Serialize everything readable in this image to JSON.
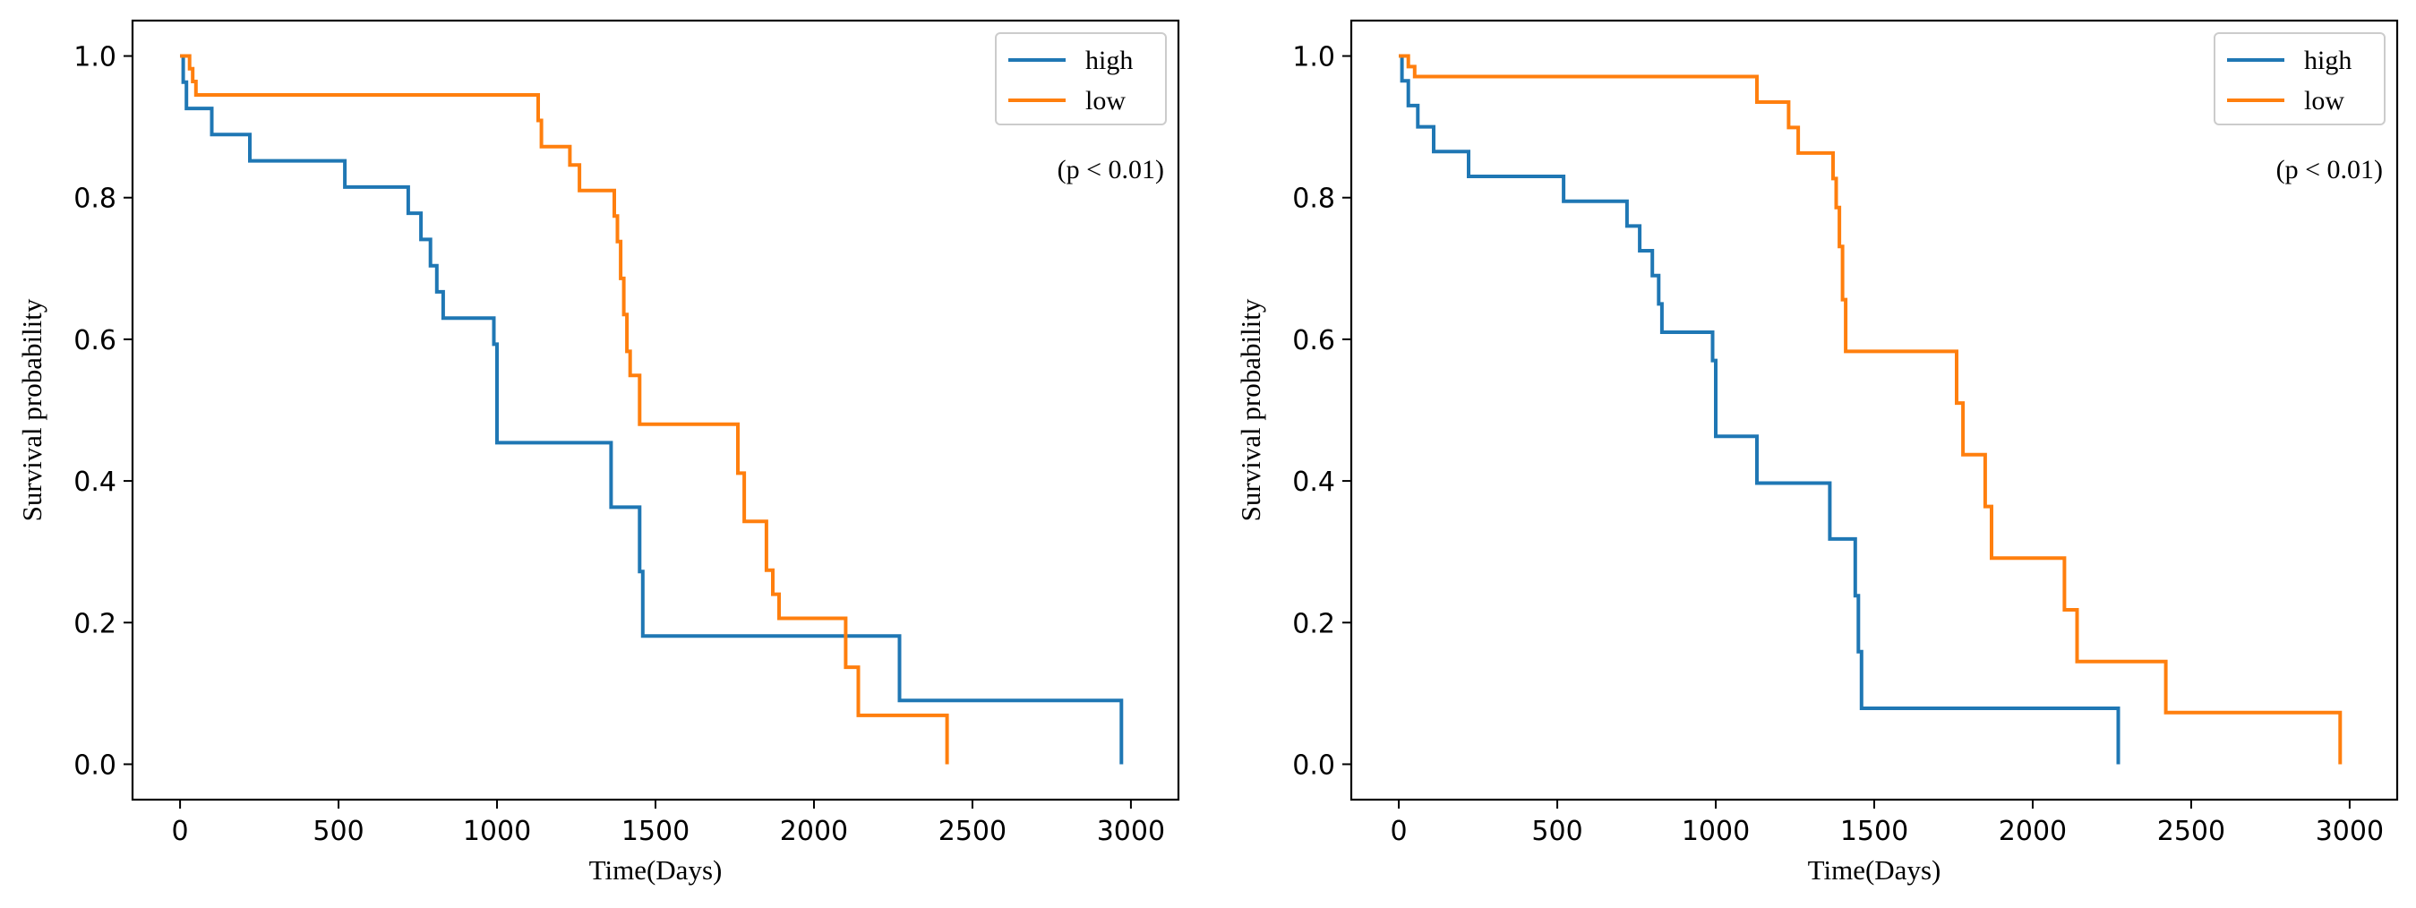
{
  "chart_data": [
    {
      "type": "line",
      "step": true,
      "title": "",
      "xlabel": "Time(Days)",
      "ylabel": "Survival probability",
      "xlim": [
        -150,
        3150
      ],
      "ylim": [
        -0.05,
        1.05
      ],
      "xticks": [
        0,
        500,
        1000,
        1500,
        2000,
        2500,
        3000
      ],
      "yticks": [
        0.0,
        0.2,
        0.4,
        0.6,
        0.8,
        1.0
      ],
      "xtick_labels": [
        "0",
        "500",
        "1000",
        "1500",
        "2000",
        "2500",
        "3000"
      ],
      "ytick_labels": [
        "0.0",
        "0.2",
        "0.4",
        "0.6",
        "0.8",
        "1.0"
      ],
      "grid": false,
      "legend_position": "top-right",
      "annotation": "(p < 0.01)",
      "series": [
        {
          "name": "high",
          "color": "#1f77b4",
          "x": [
            0,
            10,
            20,
            100,
            220,
            520,
            720,
            760,
            790,
            810,
            830,
            990,
            1000,
            1360,
            1450,
            1460,
            2270,
            2970
          ],
          "y": [
            1.0,
            0.963,
            0.926,
            0.889,
            0.852,
            0.815,
            0.778,
            0.741,
            0.704,
            0.667,
            0.63,
            0.593,
            0.454,
            0.363,
            0.272,
            0.181,
            0.09,
            0.0
          ]
        },
        {
          "name": "low",
          "color": "#ff7f0e",
          "x": [
            0,
            30,
            40,
            50,
            1130,
            1140,
            1230,
            1260,
            1370,
            1380,
            1390,
            1400,
            1410,
            1420,
            1450,
            1760,
            1780,
            1850,
            1870,
            1890,
            2100,
            2140,
            2420
          ],
          "y": [
            1.0,
            0.982,
            0.964,
            0.945,
            0.909,
            0.872,
            0.846,
            0.81,
            0.774,
            0.738,
            0.686,
            0.635,
            0.583,
            0.549,
            0.48,
            0.411,
            0.343,
            0.274,
            0.24,
            0.206,
            0.137,
            0.069,
            0.0
          ]
        }
      ]
    },
    {
      "type": "line",
      "step": true,
      "title": "",
      "xlabel": "Time(Days)",
      "ylabel": "Survival probability",
      "xlim": [
        -150,
        3150
      ],
      "ylim": [
        -0.05,
        1.05
      ],
      "xticks": [
        0,
        500,
        1000,
        1500,
        2000,
        2500,
        3000
      ],
      "yticks": [
        0.0,
        0.2,
        0.4,
        0.6,
        0.8,
        1.0
      ],
      "xtick_labels": [
        "0",
        "500",
        "1000",
        "1500",
        "2000",
        "2500",
        "3000"
      ],
      "ytick_labels": [
        "0.0",
        "0.2",
        "0.4",
        "0.6",
        "0.8",
        "1.0"
      ],
      "grid": false,
      "legend_position": "top-right",
      "annotation": "(p < 0.01)",
      "series": [
        {
          "name": "high",
          "color": "#1f77b4",
          "x": [
            0,
            10,
            30,
            60,
            110,
            220,
            520,
            720,
            760,
            800,
            820,
            830,
            990,
            1000,
            1130,
            1360,
            1440,
            1450,
            1460,
            2270
          ],
          "y": [
            1.0,
            0.965,
            0.93,
            0.9,
            0.865,
            0.83,
            0.795,
            0.76,
            0.725,
            0.69,
            0.65,
            0.61,
            0.57,
            0.463,
            0.397,
            0.318,
            0.238,
            0.159,
            0.079,
            0.0
          ]
        },
        {
          "name": "low",
          "color": "#ff7f0e",
          "x": [
            0,
            30,
            50,
            1130,
            1230,
            1260,
            1370,
            1380,
            1390,
            1400,
            1410,
            1760,
            1780,
            1850,
            1870,
            2100,
            2140,
            2420,
            2970
          ],
          "y": [
            1.0,
            0.985,
            0.971,
            0.935,
            0.899,
            0.863,
            0.827,
            0.786,
            0.731,
            0.656,
            0.583,
            0.51,
            0.437,
            0.364,
            0.291,
            0.218,
            0.145,
            0.073,
            0.0
          ]
        }
      ]
    }
  ]
}
